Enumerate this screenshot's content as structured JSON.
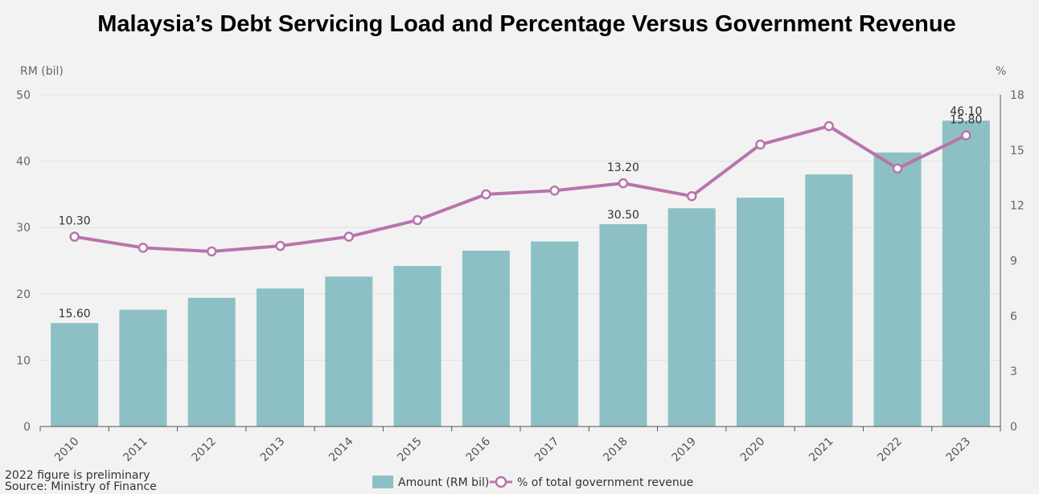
{
  "chart_data": {
    "title": "Malaysia’s Debt Servicing Load and Percentage Versus Government Revenue",
    "type": "bar",
    "categories": [
      "2010",
      "2011",
      "2012",
      "2013",
      "2014",
      "2015",
      "2016",
      "2017",
      "2018",
      "2019",
      "2020",
      "2021",
      "2022",
      "2023"
    ],
    "series": [
      {
        "name": "Amount (RM bil)",
        "type": "bar",
        "axis": "left",
        "color": "#8cc0c4",
        "values": [
          15.6,
          17.6,
          19.4,
          20.8,
          22.6,
          24.2,
          26.5,
          27.9,
          30.5,
          32.9,
          34.5,
          38.0,
          41.3,
          46.1
        ]
      },
      {
        "name": "% of total government revenue",
        "type": "line",
        "axis": "right",
        "color": "#b874ac",
        "values": [
          10.3,
          9.7,
          9.5,
          9.8,
          10.3,
          11.2,
          12.6,
          12.8,
          13.2,
          12.5,
          15.3,
          16.3,
          14.0,
          15.8
        ]
      }
    ],
    "left_axis": {
      "label": "RM (bil)",
      "ylim": [
        0,
        50
      ],
      "ticks": [
        "0",
        "10",
        "20",
        "30",
        "40",
        "50"
      ]
    },
    "right_axis": {
      "label": "%",
      "ylim": [
        0,
        18
      ],
      "ticks": [
        "0",
        "3",
        "6",
        "9",
        "12",
        "15",
        "18"
      ]
    },
    "data_labels": [
      {
        "series": 0,
        "index": 0,
        "text": "15.60"
      },
      {
        "series": 0,
        "index": 8,
        "text": "30.50"
      },
      {
        "series": 0,
        "index": 13,
        "text": "46.10"
      },
      {
        "series": 1,
        "index": 0,
        "text": "10.30"
      },
      {
        "series": 1,
        "index": 8,
        "text": "13.20"
      },
      {
        "series": 1,
        "index": 13,
        "text": "15.80"
      }
    ],
    "grid": true,
    "legend_position": "bottom-center"
  },
  "footnotes": {
    "preliminary": "2022 figure is preliminary",
    "source": "Source: Ministry of Finance"
  }
}
